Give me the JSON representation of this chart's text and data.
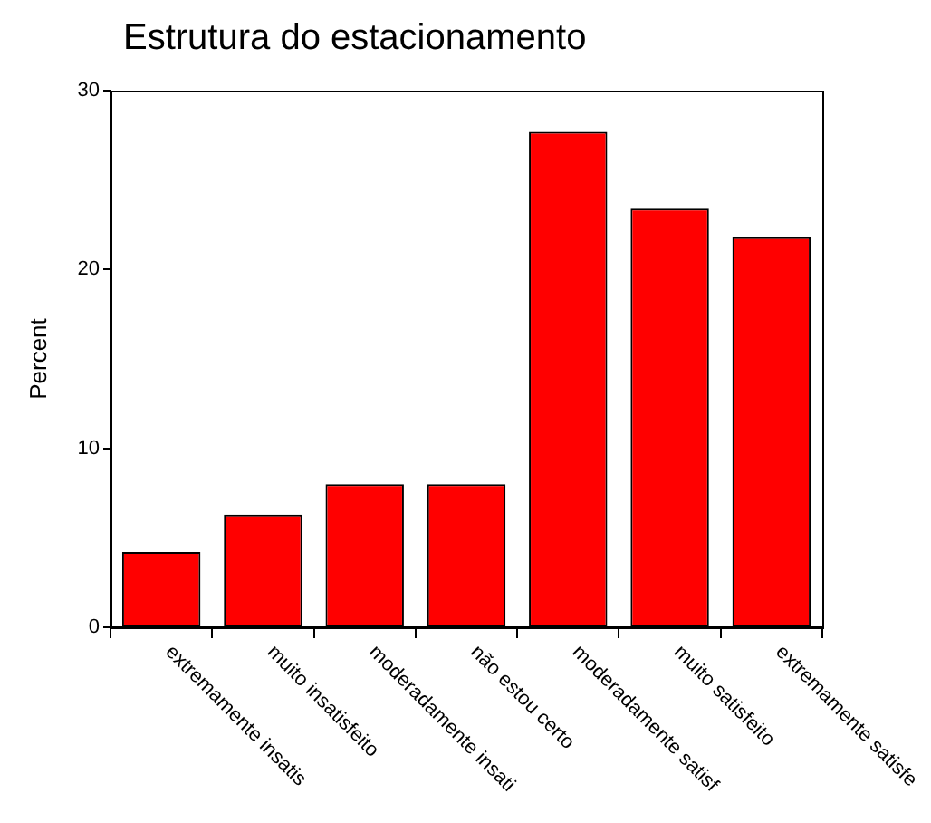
{
  "chart_data": {
    "type": "bar",
    "title": "Estrutura do estacionamento",
    "ylabel": "Percent",
    "categories": [
      "extremamente insatis",
      "muito insatisfeito",
      "moderadamente insati",
      "não estou certo",
      "moderadamente satisf",
      "muito satisfeito",
      "extremamente satisfe"
    ],
    "values": [
      4.2,
      6.3,
      8.0,
      8.0,
      27.7,
      23.4,
      21.8
    ],
    "color": "#ff0000",
    "ylim": [
      0,
      30
    ],
    "yticks": [
      0,
      10,
      20,
      30
    ],
    "grid": false,
    "legend": false
  }
}
